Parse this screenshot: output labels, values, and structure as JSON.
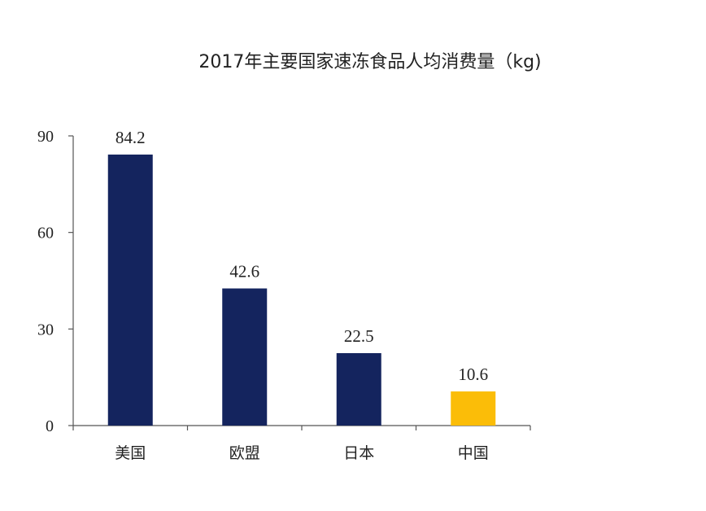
{
  "chart_data": {
    "type": "bar",
    "title": "2017年主要国家速冻食品人均消费量（kg)",
    "categories": [
      "美国",
      "欧盟",
      "日本",
      "中国"
    ],
    "values": [
      84.2,
      42.6,
      22.5,
      10.6
    ],
    "data_labels": [
      "84.2",
      "42.6",
      "22.5",
      "10.6"
    ],
    "bar_colors": [
      "#14245e",
      "#14245e",
      "#14245e",
      "#fbbd08"
    ],
    "ylim": [
      0,
      90
    ],
    "yticks": [
      0,
      30,
      60,
      90
    ],
    "ytick_labels": [
      "0",
      "30",
      "60",
      "90"
    ],
    "xlabel": "",
    "ylabel": "",
    "grid": false,
    "legend": "none"
  }
}
